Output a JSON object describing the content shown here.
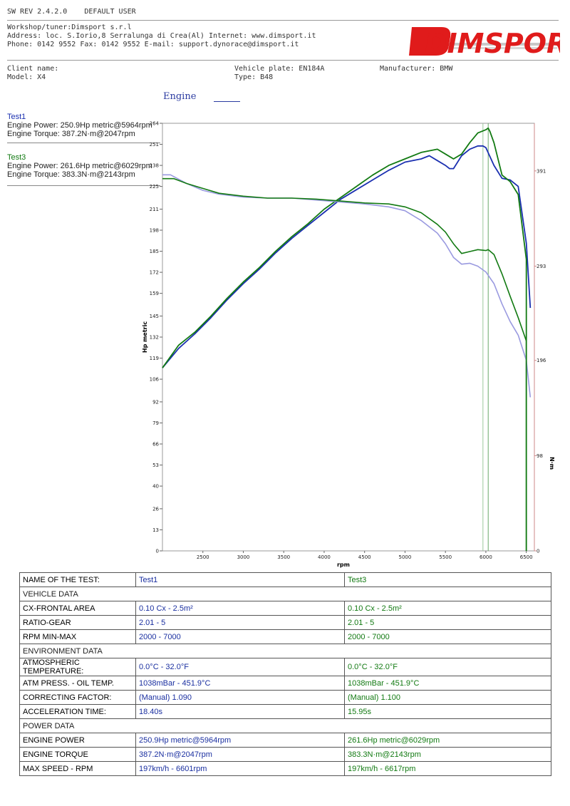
{
  "header": {
    "sw_rev": "SW REV 2.4.2.0",
    "user": "DEFAULT USER",
    "workshop": "Workshop/tuner:Dimsport s.r.l",
    "address": "Address: loc. S.Iorio,8 Serralunga di Crea(Al) Internet: www.dimsport.it",
    "phone": "Phone: 0142 9552 Fax: 0142 9552 E-mail: support.dynorace@dimsport.it",
    "logo_text": "DIMSPORT"
  },
  "vehicle": {
    "client": "Client name:",
    "model": "Model: X4",
    "plate": "Vehicle plate: EN184A",
    "type": "Type: B48",
    "manufacturer": "Manufacturer: BMW"
  },
  "chart_title": "Engine",
  "tests": [
    {
      "name": "Test1",
      "power": "Engine Power: 250.9Hp metric@5964rpm",
      "torque": "Engine Torque: 387.2N·m@2047rpm",
      "color": "#1a2fb0"
    },
    {
      "name": "Test3",
      "power": "Engine Power: 261.6Hp metric@6029rpm",
      "torque": "Engine Torque: 383.3N·m@2143rpm",
      "color": "#127a12"
    }
  ],
  "chart_data": {
    "type": "line",
    "xlabel": "rpm",
    "ylabel": "Hp metric",
    "y2label": "N·m",
    "xlim": [
      2000,
      6600
    ],
    "ylim": [
      0,
      264
    ],
    "y2lim": [
      0,
      440
    ],
    "x_ticks": [
      "2500",
      "3000",
      "3500",
      "4000",
      "4500",
      "5000",
      "5500",
      "6000",
      "6500"
    ],
    "y_ticks": [
      "0",
      "13",
      "26",
      "40",
      "53",
      "66",
      "79",
      "92",
      "106",
      "119",
      "132",
      "145",
      "159",
      "172",
      "185",
      "198",
      "211",
      "225",
      "238",
      "251",
      "264"
    ],
    "y2_ticks": [
      "0",
      "98",
      "196",
      "293",
      "391"
    ],
    "markers_rpm": [
      5964,
      6029
    ],
    "series": [
      {
        "name": "Test1",
        "axis": "power",
        "color": "#1a2fb0",
        "width": 1.8,
        "x": [
          2000,
          2200,
          2400,
          2600,
          2800,
          3000,
          3200,
          3400,
          3600,
          3800,
          4000,
          4200,
          4400,
          4600,
          4800,
          5000,
          5200,
          5300,
          5400,
          5500,
          5550,
          5600,
          5700,
          5800,
          5900,
          5964,
          6000,
          6100,
          6200,
          6300,
          6400,
          6500,
          6550
        ],
        "y": [
          113,
          125,
          134,
          144,
          155,
          165,
          174,
          184,
          193,
          201,
          209,
          217,
          223,
          229,
          235,
          240,
          242,
          244,
          241,
          238,
          236,
          236,
          244,
          248,
          250,
          250,
          249,
          238,
          230,
          229,
          225,
          190,
          150
        ]
      },
      {
        "name": "Test3",
        "axis": "power",
        "color": "#127a12",
        "width": 1.8,
        "x": [
          2000,
          2200,
          2400,
          2600,
          2800,
          3000,
          3200,
          3400,
          3600,
          3800,
          4000,
          4200,
          4400,
          4600,
          4800,
          5000,
          5200,
          5300,
          5400,
          5500,
          5600,
          5700,
          5800,
          5900,
          6000,
          6029,
          6050,
          6100,
          6200,
          6300,
          6400,
          6500,
          6500
        ],
        "y": [
          113,
          127,
          135,
          145,
          156,
          166,
          175,
          185,
          194,
          202,
          211,
          218,
          225,
          232,
          238,
          242,
          246,
          247,
          248,
          245,
          242,
          245,
          252,
          258,
          260,
          261,
          259,
          252,
          232,
          228,
          220,
          180,
          0
        ]
      },
      {
        "name": "Test1",
        "axis": "torque",
        "color": "#9a9ae0",
        "width": 1.6,
        "x": [
          2000,
          2100,
          2300,
          2500,
          2700,
          3000,
          3300,
          3600,
          3900,
          4200,
          4500,
          4800,
          5000,
          5200,
          5400,
          5500,
          5600,
          5700,
          5800,
          5900,
          6000,
          6100,
          6200,
          6300,
          6400,
          6500,
          6550
        ],
        "y": [
          387,
          387,
          378,
          371,
          367,
          364,
          363,
          363,
          361,
          359,
          357,
          354,
          350,
          340,
          327,
          316,
          302,
          295,
          296,
          293,
          287,
          275,
          254,
          236,
          222,
          196,
          158
        ]
      },
      {
        "name": "Test3",
        "axis": "torque",
        "color": "#127a12",
        "width": 1.6,
        "x": [
          2000,
          2143,
          2300,
          2500,
          2700,
          3000,
          3300,
          3600,
          3900,
          4200,
          4500,
          4800,
          5000,
          5200,
          5400,
          5500,
          5600,
          5700,
          5800,
          5900,
          6000,
          6029,
          6100,
          6200,
          6300,
          6400,
          6500,
          6500
        ],
        "y": [
          383,
          383,
          378,
          373,
          368,
          365,
          363,
          363,
          362,
          360,
          358,
          357,
          354,
          348,
          336,
          328,
          316,
          306,
          308,
          310,
          309,
          310,
          305,
          285,
          262,
          240,
          216,
          0
        ]
      }
    ]
  },
  "table": {
    "header": {
      "label": "NAME OF THE TEST:",
      "t1": "Test1",
      "t3": "Test3"
    },
    "rows": [
      {
        "section": "VEHICLE DATA"
      },
      {
        "label": "CX-FRONTAL AREA",
        "t1": "0.10 Cx - 2.5m²",
        "t3": "0.10 Cx - 2.5m²"
      },
      {
        "label": "RATIO-GEAR",
        "t1": "2.01 - 5",
        "t3": "2.01 - 5"
      },
      {
        "label": "RPM MIN-MAX",
        "t1": "2000 - 7000",
        "t3": "2000 - 7000"
      },
      {
        "section": "ENVIRONMENT DATA"
      },
      {
        "label": "ATMOSPHERIC TEMPERATURE:",
        "t1": "0.0°C - 32.0°F",
        "t3": "0.0°C - 32.0°F"
      },
      {
        "label": "ATM PRESS. - OIL TEMP.",
        "t1": "1038mBar - 451.9°C",
        "t3": "1038mBar - 451.9°C"
      },
      {
        "label": "CORRECTING FACTOR:",
        "t1": "(Manual) 1.090",
        "t3": "(Manual) 1.100"
      },
      {
        "label": "ACCELERATION TIME:",
        "t1": " 18.40s",
        "t3": " 15.95s"
      },
      {
        "section": "POWER DATA"
      },
      {
        "label": "ENGINE POWER",
        "t1": "250.9Hp metric@5964rpm",
        "t3": "261.6Hp metric@6029rpm"
      },
      {
        "label": "ENGINE TORQUE",
        "t1": "387.2N·m@2047rpm",
        "t3": "383.3N·m@2143rpm"
      },
      {
        "label": "MAX SPEED - RPM",
        "t1": "197km/h - 6601rpm",
        "t3": "197km/h - 6617rpm"
      }
    ]
  }
}
